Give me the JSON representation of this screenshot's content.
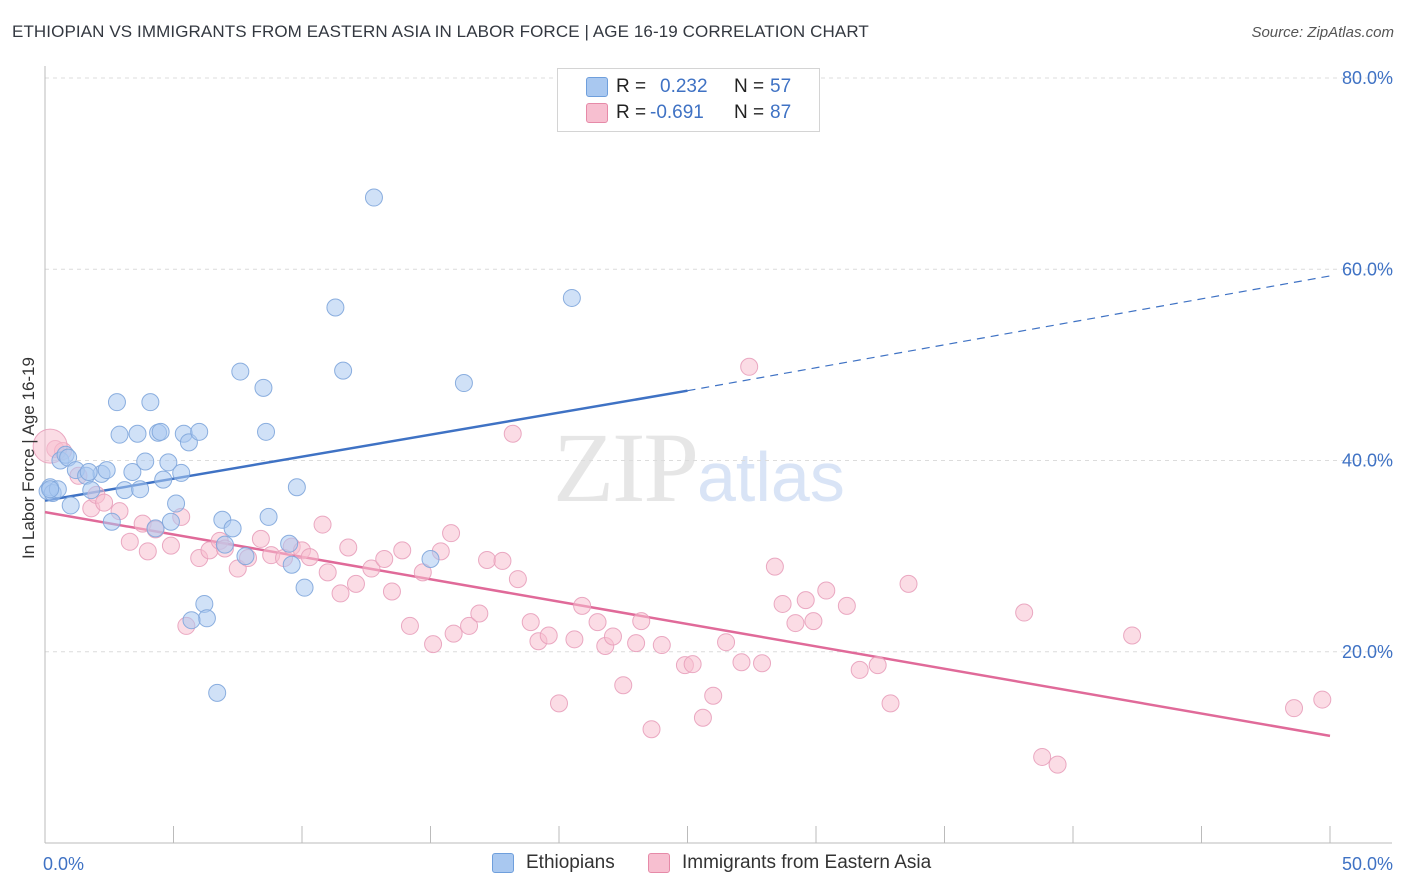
{
  "title": "ETHIOPIAN VS IMMIGRANTS FROM EASTERN ASIA IN LABOR FORCE | AGE 16-19 CORRELATION CHART",
  "source": "Source: ZipAtlas.com",
  "watermark": {
    "zip": "ZIP",
    "atlas": "atlas"
  },
  "legend": {
    "rows": [
      {
        "r_label": "R =",
        "r_value": "0.232",
        "n_label": "N =",
        "n_value": "57",
        "color": "#a9c8f0",
        "border": "#6f9fdc"
      },
      {
        "r_label": "R =",
        "r_value": "-0.691",
        "n_label": "N =",
        "n_value": "87",
        "color": "#f7bfd0",
        "border": "#e68aa8"
      }
    ]
  },
  "bottom_legend": [
    {
      "label": "Ethiopians",
      "color": "#a9c8f0",
      "border": "#6f9fdc"
    },
    {
      "label": "Immigrants from Eastern Asia",
      "color": "#f7bfd0",
      "border": "#e68aa8"
    }
  ],
  "chart_data": {
    "type": "scatter",
    "title": "ETHIOPIAN VS IMMIGRANTS FROM EASTERN ASIA IN LABOR FORCE | AGE 16-19 CORRELATION CHART",
    "xlabel": "",
    "ylabel": "In Labor Force | Age 16-19",
    "xlim": [
      0,
      50
    ],
    "ylim": [
      0,
      80
    ],
    "x_tick_labels": [
      {
        "value": 0,
        "label": "0.0%"
      },
      {
        "value": 50,
        "label": "50.0%"
      }
    ],
    "y_tick_labels": [
      {
        "value": 20,
        "label": "20.0%"
      },
      {
        "value": 40,
        "label": "40.0%"
      },
      {
        "value": 60,
        "label": "60.0%"
      },
      {
        "value": 80,
        "label": "80.0%"
      }
    ],
    "grid": true,
    "colors": {
      "blue": "#3f72c4",
      "blue_fill": "#a9c8f0",
      "pink": "#e06a99",
      "pink_fill": "#f7bfd0"
    },
    "series": [
      {
        "name": "Ethiopians",
        "r": 0.232,
        "n": 57,
        "trend": {
          "x0": 0,
          "y0": 35.8,
          "x1": 25,
          "y1": 47.3,
          "dashed_to_x": 50,
          "dashed_to_y": 59.3
        },
        "points": [
          [
            0.1,
            36.8
          ],
          [
            0.2,
            37.2
          ],
          [
            0.3,
            36.6
          ],
          [
            0.5,
            37.0
          ],
          [
            0.6,
            40.0
          ],
          [
            0.8,
            40.6
          ],
          [
            0.9,
            40.3
          ],
          [
            1.0,
            35.3
          ],
          [
            1.2,
            39.0
          ],
          [
            1.6,
            38.4
          ],
          [
            1.8,
            36.9
          ],
          [
            2.2,
            38.6
          ],
          [
            1.7,
            38.8
          ],
          [
            2.4,
            39.0
          ],
          [
            2.6,
            33.6
          ],
          [
            2.8,
            46.1
          ],
          [
            2.9,
            42.7
          ],
          [
            3.1,
            36.9
          ],
          [
            3.4,
            38.8
          ],
          [
            3.6,
            42.8
          ],
          [
            3.7,
            37.0
          ],
          [
            3.9,
            39.9
          ],
          [
            4.1,
            46.1
          ],
          [
            4.3,
            32.9
          ],
          [
            4.4,
            42.9
          ],
          [
            4.6,
            38.0
          ],
          [
            4.8,
            39.8
          ],
          [
            4.9,
            33.6
          ],
          [
            5.1,
            35.5
          ],
          [
            5.3,
            38.7
          ],
          [
            5.4,
            42.8
          ],
          [
            5.6,
            41.9
          ],
          [
            6.0,
            43.0
          ],
          [
            6.2,
            25.0
          ],
          [
            6.3,
            23.5
          ],
          [
            5.7,
            23.3
          ],
          [
            6.7,
            15.7
          ],
          [
            6.9,
            33.8
          ],
          [
            7.0,
            31.2
          ],
          [
            7.3,
            32.9
          ],
          [
            7.6,
            49.3
          ],
          [
            7.8,
            30.0
          ],
          [
            8.5,
            47.6
          ],
          [
            8.6,
            43.0
          ],
          [
            8.7,
            34.1
          ],
          [
            9.5,
            31.3
          ],
          [
            9.6,
            29.1
          ],
          [
            9.8,
            37.2
          ],
          [
            10.1,
            26.7
          ],
          [
            11.3,
            56.0
          ],
          [
            11.6,
            49.4
          ],
          [
            12.8,
            67.5
          ],
          [
            15.0,
            29.7
          ],
          [
            16.3,
            48.1
          ],
          [
            20.5,
            57.0
          ],
          [
            0.2,
            37.0
          ],
          [
            4.5,
            43.0
          ]
        ]
      },
      {
        "name": "Immigrants from Eastern Asia",
        "r": -0.691,
        "n": 87,
        "trend": {
          "x0": 0,
          "y0": 34.6,
          "x1": 50,
          "y1": 11.2
        },
        "points": [
          [
            0.4,
            41.2
          ],
          [
            0.7,
            41.0
          ],
          [
            1.3,
            38.4
          ],
          [
            1.8,
            35.0
          ],
          [
            2.0,
            36.4
          ],
          [
            2.3,
            35.6
          ],
          [
            2.9,
            34.7
          ],
          [
            3.3,
            31.5
          ],
          [
            3.8,
            33.4
          ],
          [
            4.0,
            30.5
          ],
          [
            4.3,
            32.8
          ],
          [
            4.9,
            31.1
          ],
          [
            5.3,
            34.1
          ],
          [
            5.5,
            22.7
          ],
          [
            6.0,
            29.8
          ],
          [
            6.4,
            30.6
          ],
          [
            6.8,
            31.6
          ],
          [
            7.0,
            30.8
          ],
          [
            7.5,
            28.7
          ],
          [
            7.9,
            29.8
          ],
          [
            8.4,
            31.8
          ],
          [
            8.8,
            30.1
          ],
          [
            9.3,
            29.8
          ],
          [
            9.6,
            31.0
          ],
          [
            10.0,
            30.6
          ],
          [
            10.3,
            29.9
          ],
          [
            10.8,
            33.3
          ],
          [
            11.0,
            28.3
          ],
          [
            11.5,
            26.1
          ],
          [
            11.8,
            30.9
          ],
          [
            12.1,
            27.1
          ],
          [
            12.7,
            28.7
          ],
          [
            13.2,
            29.7
          ],
          [
            13.5,
            26.3
          ],
          [
            13.9,
            30.6
          ],
          [
            14.2,
            22.7
          ],
          [
            14.7,
            28.3
          ],
          [
            15.1,
            20.8
          ],
          [
            15.4,
            30.5
          ],
          [
            15.8,
            32.4
          ],
          [
            15.9,
            21.9
          ],
          [
            16.5,
            22.7
          ],
          [
            16.9,
            24.0
          ],
          [
            17.2,
            29.6
          ],
          [
            17.8,
            29.5
          ],
          [
            18.2,
            42.8
          ],
          [
            18.4,
            27.6
          ],
          [
            18.9,
            23.1
          ],
          [
            19.2,
            21.1
          ],
          [
            19.6,
            21.7
          ],
          [
            20.0,
            14.6
          ],
          [
            20.6,
            21.3
          ],
          [
            20.9,
            24.8
          ],
          [
            21.5,
            23.1
          ],
          [
            21.8,
            20.6
          ],
          [
            22.1,
            21.6
          ],
          [
            22.5,
            16.5
          ],
          [
            23.0,
            20.9
          ],
          [
            23.2,
            23.2
          ],
          [
            23.6,
            11.9
          ],
          [
            24.0,
            20.7
          ],
          [
            24.9,
            18.6
          ],
          [
            25.2,
            18.7
          ],
          [
            25.6,
            13.1
          ],
          [
            26.0,
            15.4
          ],
          [
            26.5,
            21.0
          ],
          [
            27.1,
            18.9
          ],
          [
            27.4,
            49.8
          ],
          [
            27.9,
            18.8
          ],
          [
            28.4,
            28.9
          ],
          [
            28.7,
            25.0
          ],
          [
            29.2,
            23.0
          ],
          [
            29.6,
            25.4
          ],
          [
            29.9,
            23.2
          ],
          [
            30.4,
            26.4
          ],
          [
            31.2,
            24.8
          ],
          [
            31.7,
            18.1
          ],
          [
            32.4,
            18.6
          ],
          [
            32.9,
            14.6
          ],
          [
            33.6,
            27.1
          ],
          [
            38.1,
            24.1
          ],
          [
            38.8,
            9.0
          ],
          [
            39.4,
            8.2
          ],
          [
            42.3,
            21.7
          ],
          [
            48.6,
            14.1
          ],
          [
            49.7,
            15.0
          ],
          [
            0.2,
            41.5
          ]
        ]
      }
    ]
  }
}
